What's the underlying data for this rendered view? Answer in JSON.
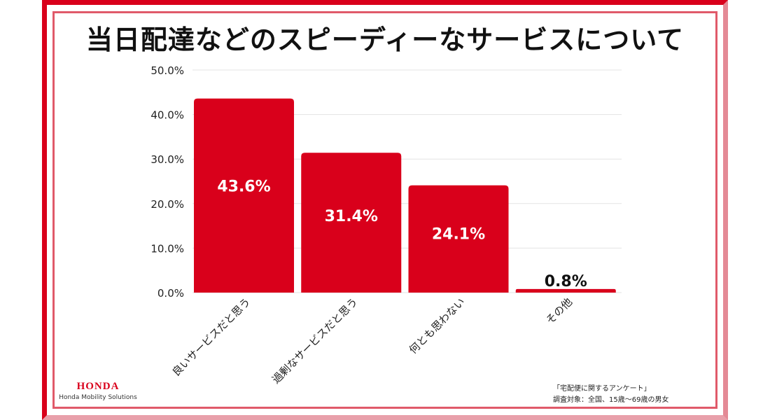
{
  "title": "当日配達などのスピーディーなサービスについて",
  "brand": {
    "logo": "HONDA",
    "subtitle": "Honda Mobility Solutions"
  },
  "footnote": {
    "line1": "「宅配便に関するアンケート」",
    "line2": "調査対象：全国、15歳〜69歳の男女"
  },
  "colors": {
    "bar": "#d9001b",
    "frame": "#d9001b"
  },
  "chart_data": {
    "type": "bar",
    "title": "当日配達などのスピーディーなサービスについて",
    "categories": [
      "良いサービスだと思う",
      "過剰なサービスだと思う",
      "何とも思わない",
      "その他"
    ],
    "values": [
      43.6,
      31.4,
      24.1,
      0.8
    ],
    "value_labels": [
      "43.6%",
      "31.4%",
      "24.1%",
      "0.8%"
    ],
    "ylim": [
      0,
      50
    ],
    "yticks": [
      "0.0%",
      "10.0%",
      "20.0%",
      "30.0%",
      "40.0%",
      "50.0%"
    ],
    "grid": true,
    "xlabel": "",
    "ylabel": ""
  }
}
